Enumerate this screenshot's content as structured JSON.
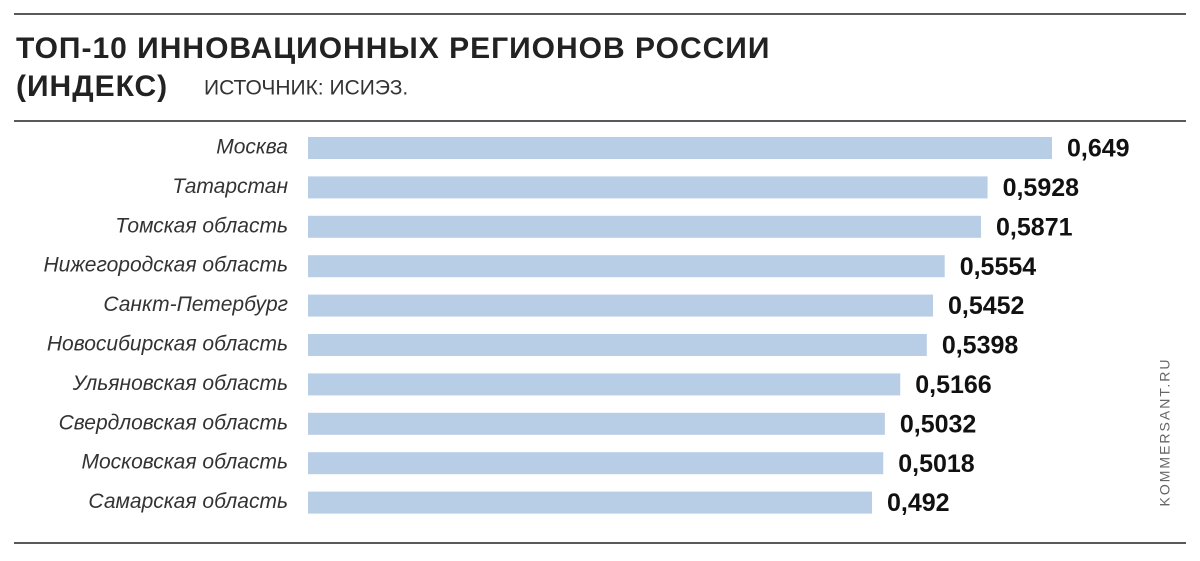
{
  "chart_data": {
    "type": "bar",
    "orientation": "horizontal",
    "title": [
      "ТОП-10 ИННОВАЦИОННЫХ РЕГИОНОВ РОССИИ",
      "(ИНДЕКС)"
    ],
    "source": "ИСТОЧНИК: ИСИЭЗ.",
    "credit": "KOMMERSANT.RU",
    "categories": [
      "Москва",
      "Татарстан",
      "Томская область",
      "Нижегородская область",
      "Санкт-Петербург",
      "Новосибирская область",
      "Ульяновская область",
      "Свердловская область",
      "Московская область",
      "Самарская область"
    ],
    "values": [
      0.649,
      0.5928,
      0.5871,
      0.5554,
      0.5452,
      0.5398,
      0.5166,
      0.5032,
      0.5018,
      0.492
    ],
    "value_labels": [
      "0,649",
      "0,5928",
      "0,5871",
      "0,5554",
      "0,5452",
      "0,5398",
      "0,5166",
      "0,5032",
      "0,5018",
      "0,492"
    ],
    "color": "#b8cde6"
  }
}
